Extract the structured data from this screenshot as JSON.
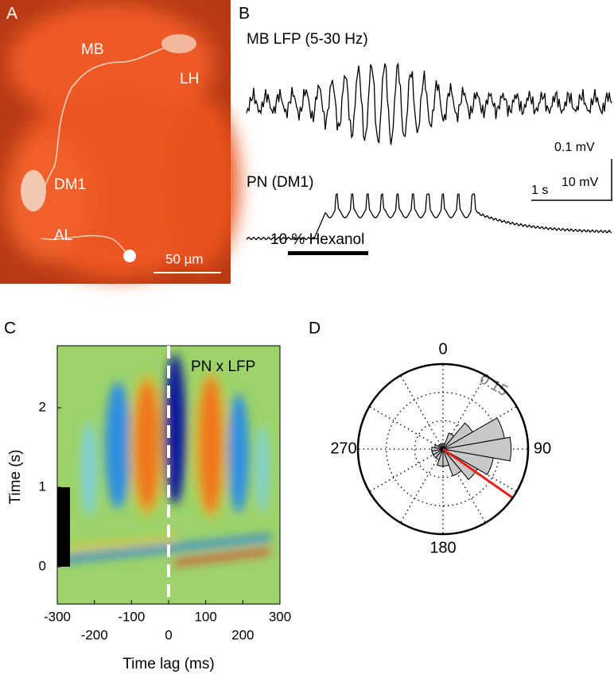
{
  "panels": [
    {
      "label": "A",
      "annotations": [
        "MB",
        "LH",
        "DM1",
        "AL"
      ],
      "scale_bar": "50 µm"
    },
    {
      "label": "B",
      "traces": [
        "MB LFP (5-30 Hz)",
        "PN (DM1)"
      ],
      "scale_bars": [
        "0.1 mV",
        "10 mV",
        "1 s"
      ],
      "stimulus": "10 % Hexanol"
    }
  ],
  "chart_data": [
    {
      "type": "heatmap",
      "panel": "C",
      "annotation": "PN x LFP",
      "xlabel": "Time lag (ms)",
      "ylabel": "Time (s)",
      "xlim": [
        -300,
        300
      ],
      "xticks": [
        -300,
        -200,
        -100,
        0,
        100,
        200,
        300
      ],
      "ylim": [
        -0.47,
        2.78
      ],
      "yticks": [
        0,
        1,
        2
      ],
      "stimulus_window": [
        0,
        1
      ]
    },
    {
      "type": "polar_histogram",
      "panel": "D",
      "thetaticks": [
        0,
        90,
        180,
        270
      ],
      "rlim": [
        0,
        0.15
      ],
      "rticks": [
        0.15
      ],
      "bins": [
        0,
        20,
        40,
        60,
        80,
        100,
        120,
        140,
        160,
        180,
        200,
        220,
        240,
        260,
        280,
        300,
        320,
        340,
        360
      ],
      "values": [
        0.01,
        0.03,
        0.06,
        0.11,
        0.12,
        0.09,
        0.07,
        0.05,
        0.03,
        0.03,
        0.02,
        0.02,
        0.02,
        0.02,
        0.015,
        0.01,
        0.01,
        0.01
      ],
      "color": "#c8c8c8",
      "mean_angle": 125,
      "mean_color": "#e8201c"
    }
  ]
}
